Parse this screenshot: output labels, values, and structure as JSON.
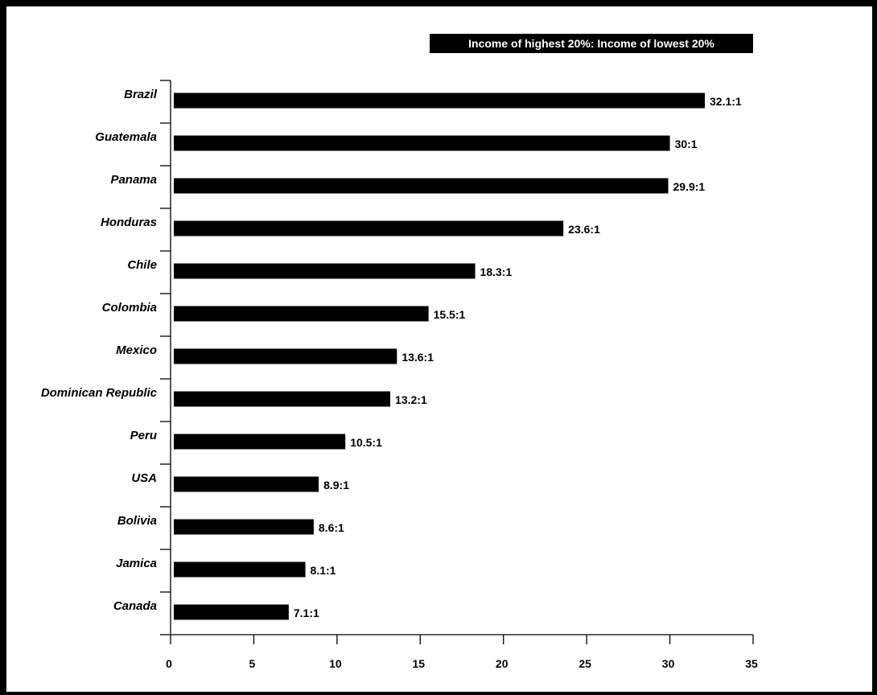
{
  "chart_data": {
    "type": "bar",
    "orientation": "horizontal",
    "title": "Income of highest 20%: Income of lowest 20%",
    "categories": [
      "Brazil",
      "Guatemala",
      "Panama",
      "Honduras",
      "Chile",
      "Colombia",
      "Mexico",
      "Dominican Republic",
      "Peru",
      "USA",
      "Bolivia",
      "Jamica",
      "Canada"
    ],
    "values": [
      32.1,
      30,
      29.9,
      23.6,
      18.3,
      15.5,
      13.6,
      13.2,
      10.5,
      8.9,
      8.6,
      8.1,
      7.1
    ],
    "value_labels": [
      "32.1:1",
      "30:1",
      "29.9:1",
      "23.6:1",
      "18.3:1",
      "15.5:1",
      "13.6:1",
      "13.2:1",
      "10.5:1",
      "8.9:1",
      "8.6:1",
      "8.1:1",
      "7.1:1"
    ],
    "xlim": [
      0,
      35
    ],
    "x_ticks": [
      0,
      5,
      10,
      15,
      20,
      25,
      30,
      35
    ],
    "x_tick_labels": [
      "0",
      "5",
      "10",
      "15",
      "20",
      "25",
      "30",
      "35"
    ],
    "xlabel": "",
    "ylabel": "",
    "grid": false,
    "bar_color": "#000000"
  }
}
